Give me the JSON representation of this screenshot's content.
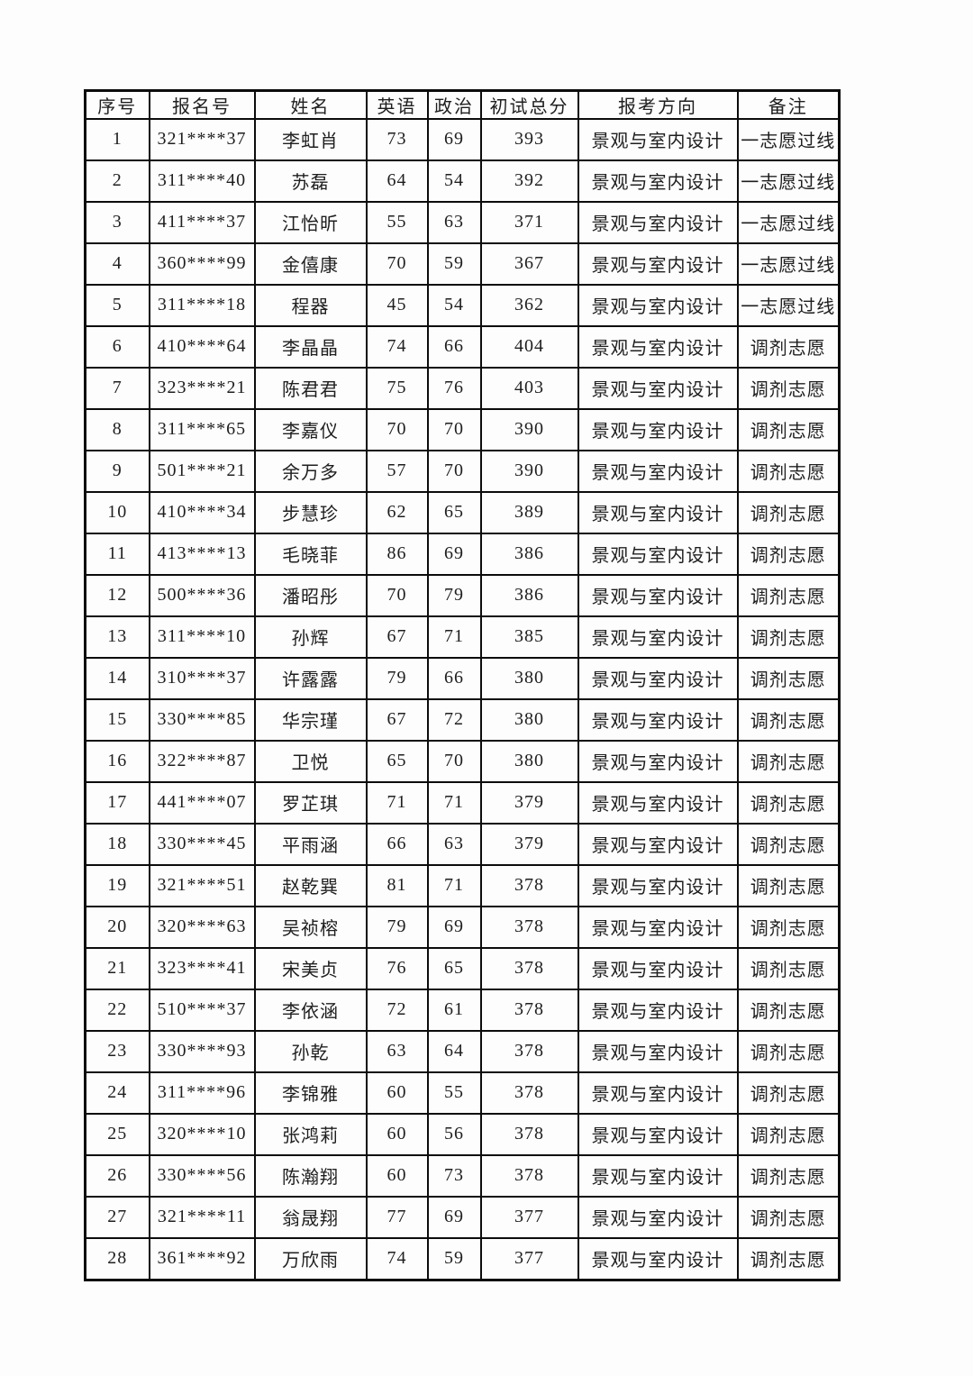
{
  "colors": {
    "page_background": "#fdfdfd",
    "table_border": "#0c0c0c",
    "text_ink": "#1e1e1e"
  },
  "table": {
    "headers": [
      "序号",
      "报名号",
      "姓名",
      "英语",
      "政治",
      "初试总分",
      "报考方向",
      "备注"
    ],
    "rows": [
      [
        "1",
        "321****37",
        "李虹肖",
        "73",
        "69",
        "393",
        "景观与室内设计",
        "一志愿过线"
      ],
      [
        "2",
        "311****40",
        "苏磊",
        "64",
        "54",
        "392",
        "景观与室内设计",
        "一志愿过线"
      ],
      [
        "3",
        "411****37",
        "江怡昕",
        "55",
        "63",
        "371",
        "景观与室内设计",
        "一志愿过线"
      ],
      [
        "4",
        "360****99",
        "金僖康",
        "70",
        "59",
        "367",
        "景观与室内设计",
        "一志愿过线"
      ],
      [
        "5",
        "311****18",
        "程器",
        "45",
        "54",
        "362",
        "景观与室内设计",
        "一志愿过线"
      ],
      [
        "6",
        "410****64",
        "李晶晶",
        "74",
        "66",
        "404",
        "景观与室内设计",
        "调剂志愿"
      ],
      [
        "7",
        "323****21",
        "陈君君",
        "75",
        "76",
        "403",
        "景观与室内设计",
        "调剂志愿"
      ],
      [
        "8",
        "311****65",
        "李嘉仪",
        "70",
        "70",
        "390",
        "景观与室内设计",
        "调剂志愿"
      ],
      [
        "9",
        "501****21",
        "余万多",
        "57",
        "70",
        "390",
        "景观与室内设计",
        "调剂志愿"
      ],
      [
        "10",
        "410****34",
        "步慧珍",
        "62",
        "65",
        "389",
        "景观与室内设计",
        "调剂志愿"
      ],
      [
        "11",
        "413****13",
        "毛晓菲",
        "86",
        "69",
        "386",
        "景观与室内设计",
        "调剂志愿"
      ],
      [
        "12",
        "500****36",
        "潘昭彤",
        "70",
        "79",
        "386",
        "景观与室内设计",
        "调剂志愿"
      ],
      [
        "13",
        "311****10",
        "孙辉",
        "67",
        "71",
        "385",
        "景观与室内设计",
        "调剂志愿"
      ],
      [
        "14",
        "310****37",
        "许露露",
        "79",
        "66",
        "380",
        "景观与室内设计",
        "调剂志愿"
      ],
      [
        "15",
        "330****85",
        "华宗瑾",
        "67",
        "72",
        "380",
        "景观与室内设计",
        "调剂志愿"
      ],
      [
        "16",
        "322****87",
        "卫悦",
        "65",
        "70",
        "380",
        "景观与室内设计",
        "调剂志愿"
      ],
      [
        "17",
        "441****07",
        "罗芷琪",
        "71",
        "71",
        "379",
        "景观与室内设计",
        "调剂志愿"
      ],
      [
        "18",
        "330****45",
        "平雨涵",
        "66",
        "63",
        "379",
        "景观与室内设计",
        "调剂志愿"
      ],
      [
        "19",
        "321****51",
        "赵乾巽",
        "81",
        "71",
        "378",
        "景观与室内设计",
        "调剂志愿"
      ],
      [
        "20",
        "320****63",
        "吴祯榕",
        "79",
        "69",
        "378",
        "景观与室内设计",
        "调剂志愿"
      ],
      [
        "21",
        "323****41",
        "宋美贞",
        "76",
        "65",
        "378",
        "景观与室内设计",
        "调剂志愿"
      ],
      [
        "22",
        "510****37",
        "李依涵",
        "72",
        "61",
        "378",
        "景观与室内设计",
        "调剂志愿"
      ],
      [
        "23",
        "330****93",
        "孙乾",
        "63",
        "64",
        "378",
        "景观与室内设计",
        "调剂志愿"
      ],
      [
        "24",
        "311****96",
        "李锦雅",
        "60",
        "55",
        "378",
        "景观与室内设计",
        "调剂志愿"
      ],
      [
        "25",
        "320****10",
        "张鸿莉",
        "60",
        "56",
        "378",
        "景观与室内设计",
        "调剂志愿"
      ],
      [
        "26",
        "330****56",
        "陈瀚翔",
        "60",
        "73",
        "378",
        "景观与室内设计",
        "调剂志愿"
      ],
      [
        "27",
        "321****11",
        "翁晟翔",
        "77",
        "69",
        "377",
        "景观与室内设计",
        "调剂志愿"
      ],
      [
        "28",
        "361****92",
        "万欣雨",
        "74",
        "59",
        "377",
        "景观与室内设计",
        "调剂志愿"
      ]
    ],
    "column_keys": [
      "index",
      "regno",
      "name",
      "english",
      "politics",
      "total",
      "major",
      "remark"
    ]
  }
}
